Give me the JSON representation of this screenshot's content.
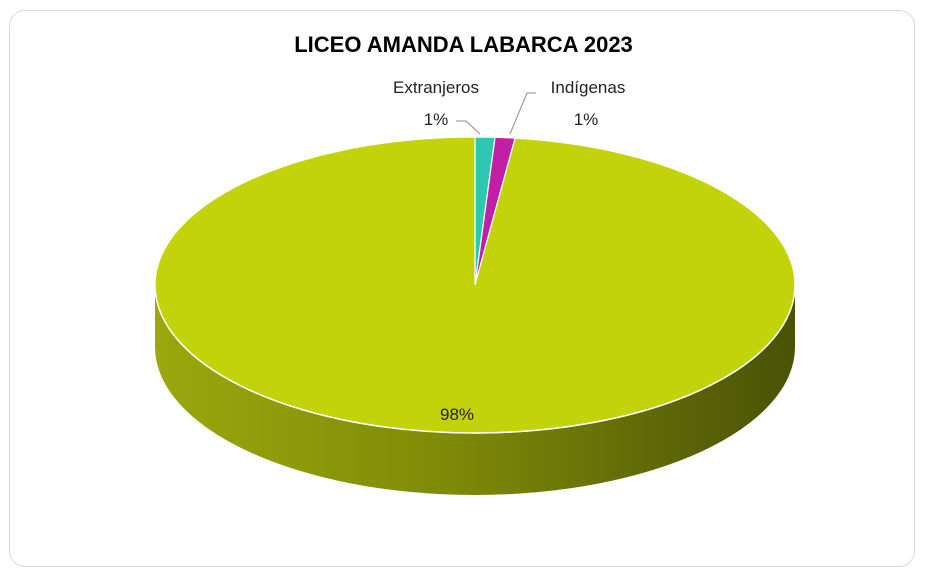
{
  "chart_data": {
    "type": "pie",
    "style": "3d",
    "title": "LICEO AMANDA LABARCA 2023",
    "slices": [
      {
        "label": "",
        "value": 98,
        "display": "98%",
        "color": "#c2d30a"
      },
      {
        "label": "Extranjeros",
        "value": 1,
        "display": "1%",
        "color": "#2ec7b5"
      },
      {
        "label": "Indígenas",
        "value": 1,
        "display": "1%",
        "color": "#c01fa6"
      }
    ],
    "legend": "none"
  }
}
